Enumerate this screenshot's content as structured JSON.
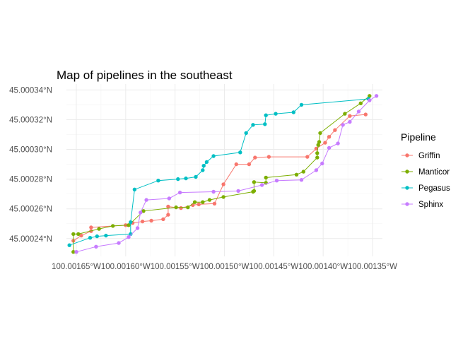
{
  "chart_data": {
    "type": "line",
    "title": "Map of pipelines in the southeast",
    "xlabel": "",
    "ylabel": "",
    "legend_title": "Pipeline",
    "legend_position": "right",
    "grid": true,
    "x_unit": "degrees longitude (negative = W)",
    "y_unit": "degrees latitude (N)",
    "xlim": [
      -100.00166,
      -100.00134
    ],
    "ylim": [
      45.000228,
      45.000344
    ],
    "x_ticks": [
      {
        "value": -100.00165,
        "label": "100.00165°W"
      },
      {
        "value": -100.0016,
        "label": "100.00160°W"
      },
      {
        "value": -100.00155,
        "label": "100.00155°W"
      },
      {
        "value": -100.0015,
        "label": "100.00150°W"
      },
      {
        "value": -100.00145,
        "label": "100.00145°W"
      },
      {
        "value": -100.0014,
        "label": "100.00140°W"
      },
      {
        "value": -100.00135,
        "label": "100.00135°W"
      }
    ],
    "y_ticks": [
      {
        "value": 45.00024,
        "label": "45.00024°N"
      },
      {
        "value": 45.00026,
        "label": "45.00026°N"
      },
      {
        "value": 45.00028,
        "label": "45.00028°N"
      },
      {
        "value": 45.0003,
        "label": "45.00030°N"
      },
      {
        "value": 45.00032,
        "label": "45.00032°N"
      },
      {
        "value": 45.00034,
        "label": "45.00034°N"
      }
    ],
    "series": [
      {
        "name": "Griffin",
        "color": "#F8766D",
        "points": [
          [
            -100.001653,
            45.0002385
          ],
          [
            -100.001645,
            45.000242
          ],
          [
            -100.001635,
            45.000245
          ],
          [
            -100.001635,
            45.0002475
          ],
          [
            -100.0016,
            45.000249
          ],
          [
            -100.001593,
            45.0002505
          ],
          [
            -100.001583,
            45.0002515
          ],
          [
            -100.001574,
            45.000252
          ],
          [
            -100.001562,
            45.000253
          ],
          [
            -100.001557,
            45.000256
          ],
          [
            -100.001557,
            45.0002615
          ],
          [
            -100.001544,
            45.0002605
          ],
          [
            -100.001532,
            45.0002625
          ],
          [
            -100.001526,
            45.000263
          ],
          [
            -100.00151,
            45.0002635
          ],
          [
            -100.001501,
            45.0002765
          ],
          [
            -100.001488,
            45.00029
          ],
          [
            -100.001475,
            45.00029
          ],
          [
            -100.001469,
            45.0002945
          ],
          [
            -100.001455,
            45.000295
          ],
          [
            -100.001416,
            45.000295
          ],
          [
            -100.001407,
            45.0003005
          ],
          [
            -100.001398,
            45.0003045
          ],
          [
            -100.001394,
            45.0003085
          ],
          [
            -100.001388,
            45.000313
          ],
          [
            -100.001373,
            45.0003225
          ],
          [
            -100.001357,
            45.0003235
          ]
        ]
      },
      {
        "name": "Manticor",
        "color": "#7CAE00",
        "points": [
          [
            -100.001653,
            45.000231
          ],
          [
            -100.001653,
            45.000243
          ],
          [
            -100.001648,
            45.000243
          ],
          [
            -100.001627,
            45.0002465
          ],
          [
            -100.001613,
            45.0002485
          ],
          [
            -100.001597,
            45.000249
          ],
          [
            -100.001582,
            45.0002585
          ],
          [
            -100.001549,
            45.000261
          ],
          [
            -100.001537,
            45.000261
          ],
          [
            -100.00153,
            45.0002645
          ],
          [
            -100.001522,
            45.0002645
          ],
          [
            -100.001515,
            45.000266
          ],
          [
            -100.001501,
            45.000268
          ],
          [
            -100.001471,
            45.0002715
          ],
          [
            -100.00147,
            45.000272
          ],
          [
            -100.00147,
            45.000278
          ],
          [
            -100.001458,
            45.0002775
          ],
          [
            -100.001458,
            45.000281
          ],
          [
            -100.001427,
            45.000283
          ],
          [
            -100.00142,
            45.000285
          ],
          [
            -100.001406,
            45.0002945
          ],
          [
            -100.001406,
            45.0002975
          ],
          [
            -100.001405,
            45.000303
          ],
          [
            -100.001404,
            45.000305
          ],
          [
            -100.001403,
            45.000311
          ],
          [
            -100.001378,
            45.000324
          ],
          [
            -100.001362,
            45.000331
          ],
          [
            -100.001353,
            45.000336
          ]
        ]
      },
      {
        "name": "Pegasus",
        "color": "#00BFC4",
        "points": [
          [
            -100.001657,
            45.0002355
          ],
          [
            -100.001636,
            45.0002405
          ],
          [
            -100.001629,
            45.0002415
          ],
          [
            -100.00162,
            45.000242
          ],
          [
            -100.001595,
            45.000243
          ],
          [
            -100.001595,
            45.000251
          ],
          [
            -100.001591,
            45.000273
          ],
          [
            -100.001567,
            45.000279
          ],
          [
            -100.001547,
            45.00028
          ],
          [
            -100.001539,
            45.0002805
          ],
          [
            -100.001529,
            45.0002815
          ],
          [
            -100.001522,
            45.000286
          ],
          [
            -100.001521,
            45.000289
          ],
          [
            -100.001518,
            45.0002915
          ],
          [
            -100.001511,
            45.0002955
          ],
          [
            -100.001484,
            45.000298
          ],
          [
            -100.001478,
            45.000311
          ],
          [
            -100.001471,
            45.0003165
          ],
          [
            -100.001459,
            45.000317
          ],
          [
            -100.001458,
            45.000323
          ],
          [
            -100.001448,
            45.000324
          ],
          [
            -100.00143,
            45.000325
          ],
          [
            -100.001422,
            45.00033
          ],
          [
            -100.001354,
            45.000334
          ]
        ]
      },
      {
        "name": "Sphinx",
        "color": "#C77CFF",
        "points": [
          [
            -100.00165,
            45.000231
          ],
          [
            -100.00163,
            45.0002345
          ],
          [
            -100.001607,
            45.000237
          ],
          [
            -100.001597,
            45.000241
          ],
          [
            -100.001588,
            45.000247
          ],
          [
            -100.001585,
            45.0002575
          ],
          [
            -100.001579,
            45.000266
          ],
          [
            -100.001556,
            45.000267
          ],
          [
            -100.001545,
            45.000271
          ],
          [
            -100.001511,
            45.0002715
          ],
          [
            -100.001486,
            45.000272
          ],
          [
            -100.001462,
            45.000276
          ],
          [
            -100.001447,
            45.000279
          ],
          [
            -100.001422,
            45.0002795
          ],
          [
            -100.001407,
            45.000286
          ],
          [
            -100.001401,
            45.0002905
          ],
          [
            -100.001394,
            45.000301
          ],
          [
            -100.001385,
            45.000304
          ],
          [
            -100.00138,
            45.0003165
          ],
          [
            -100.001373,
            45.0003185
          ],
          [
            -100.001364,
            45.0003255
          ],
          [
            -100.001353,
            45.000333
          ],
          [
            -100.001346,
            45.000336
          ]
        ]
      }
    ]
  }
}
